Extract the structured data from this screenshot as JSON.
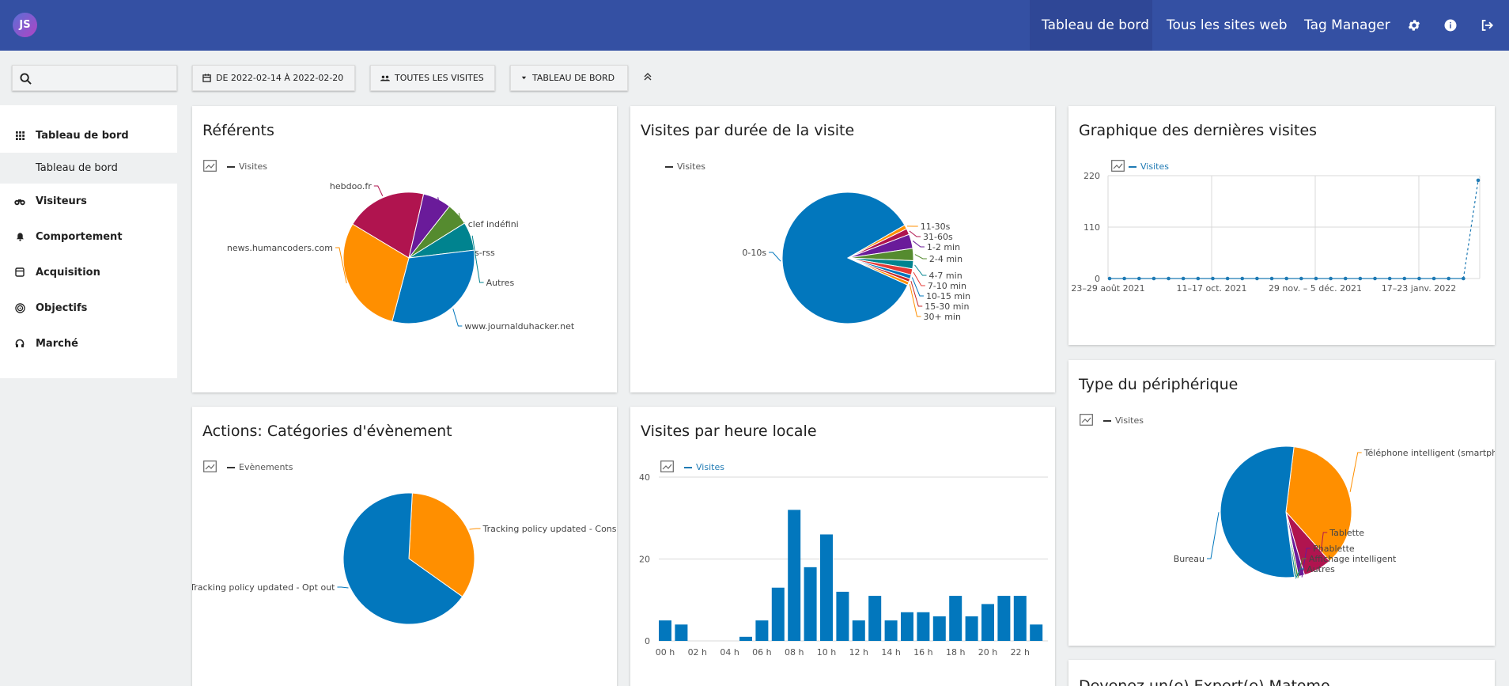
{
  "user": {
    "initials": "JS"
  },
  "topnav": {
    "items": [
      "Tableau de bord",
      "Tous les sites web",
      "Tag Manager"
    ],
    "icons": [
      "gear-icon",
      "info-icon",
      "logout-icon"
    ]
  },
  "toolbar": {
    "search_placeholder": "",
    "period_label": "DE 2022-02-14 À 2022-02-20",
    "segment_label": "TOUTES LES VISITES",
    "dashboard_label": "TABLEAU DE BORD"
  },
  "sidebar": {
    "items": [
      {
        "label": "Tableau de bord",
        "icon": "grid-icon"
      },
      {
        "label": "Visiteurs",
        "icon": "binoculars-icon"
      },
      {
        "label": "Comportement",
        "icon": "bell-icon"
      },
      {
        "label": "Acquisition",
        "icon": "acquisition-icon"
      },
      {
        "label": "Objectifs",
        "icon": "target-icon"
      },
      {
        "label": "Marché",
        "icon": "headset-icon"
      }
    ],
    "sub_item": "Tableau de bord"
  },
  "cards": {
    "referents": {
      "title": "Référents",
      "legend": "Visites"
    },
    "duree": {
      "title": "Visites par durée de la visite",
      "legend": "Visites"
    },
    "graphique": {
      "title": "Graphique des dernières visites",
      "legend": "Visites"
    },
    "actions": {
      "title": "Actions: Catégories d'évènement",
      "legend": "Evènements"
    },
    "heure": {
      "title": "Visites par heure locale",
      "legend": "Visites"
    },
    "peripherique": {
      "title": "Type du périphérique",
      "legend": "Visites"
    },
    "expert": {
      "title": "Devenez un(e) Expert(e) Matomo"
    }
  },
  "colors": {
    "topbar": "#3450a3",
    "blue": "#0277bd",
    "orange": "#ff8f00",
    "crimson": "#b0144f",
    "purple": "#6a1b9a",
    "green": "#558b2f",
    "teal": "#00838f",
    "red": "#e53935",
    "link": "#1f7ab4"
  },
  "chart_data": [
    {
      "type": "pie",
      "title": "Référents",
      "series": [
        {
          "name": "Visites",
          "values": [
            {
              "label": "hebdoo.fr",
              "value": 20,
              "color": "#b0144f"
            },
            {
              "label": "Mot clef indéfini",
              "value": 7,
              "color": "#6a1b9a"
            },
            {
              "label": "ts-rss",
              "value": 5.5,
              "color": "#558b2f"
            },
            {
              "label": "Autres",
              "value": 7,
              "color": "#00838f"
            },
            {
              "label": "www.journalduhacker.net",
              "value": 31,
              "color": "#0277bd"
            },
            {
              "label": "news.humancoders.com",
              "value": 29.5,
              "color": "#ff8f00"
            }
          ]
        }
      ]
    },
    {
      "type": "pie",
      "title": "Visites par durée de la visite",
      "series": [
        {
          "name": "Visites",
          "values": [
            {
              "label": "11-30s",
              "value": 1,
              "color": "#ff8f00"
            },
            {
              "label": "31-60s",
              "value": 1.5,
              "color": "#b0144f"
            },
            {
              "label": "1-2 min",
              "value": 3.5,
              "color": "#6a1b9a"
            },
            {
              "label": "2-4 min",
              "value": 3,
              "color": "#558b2f"
            },
            {
              "label": "4-7 min",
              "value": 2,
              "color": "#00838f"
            },
            {
              "label": "7-10 min",
              "value": 1.5,
              "color": "#e53935"
            },
            {
              "label": "10-15 min",
              "value": 1,
              "color": "#0277bd"
            },
            {
              "label": "15-30 min",
              "value": 0.8,
              "color": "#c62828"
            },
            {
              "label": "30+ min",
              "value": 0.8,
              "color": "#ff8f00"
            },
            {
              "label": "0-10s",
              "value": 84.9,
              "color": "#0277bd"
            }
          ]
        }
      ]
    },
    {
      "type": "line",
      "title": "Graphique des dernières visites",
      "x_ticks": [
        "23–29 août 2021",
        "11–17 oct. 2021",
        "29 nov. – 5 déc. 2021",
        "17–23 janv. 2022"
      ],
      "y_ticks": [
        0,
        110,
        220
      ],
      "ylim": [
        0,
        220
      ],
      "series": [
        {
          "name": "Visites",
          "values": [
            0,
            0,
            0,
            0,
            0,
            0,
            0,
            0,
            0,
            0,
            0,
            0,
            0,
            0,
            0,
            0,
            0,
            0,
            0,
            0,
            0,
            0,
            0,
            0,
            0,
            210
          ]
        }
      ]
    },
    {
      "type": "pie",
      "title": "Actions: Catégories d'évènement",
      "series": [
        {
          "name": "Evènements",
          "values": [
            {
              "label": "Tracking policy updated - Consent",
              "value": 34,
              "color": "#ff8f00"
            },
            {
              "label": "Tracking policy updated - Opt out",
              "value": 66,
              "color": "#0277bd"
            }
          ]
        }
      ]
    },
    {
      "type": "bar",
      "title": "Visites par heure locale",
      "categories": [
        "00 h",
        "01 h",
        "02 h",
        "03 h",
        "04 h",
        "05 h",
        "06 h",
        "07 h",
        "08 h",
        "09 h",
        "10 h",
        "11 h",
        "12 h",
        "13 h",
        "14 h",
        "15 h",
        "16 h",
        "17 h",
        "18 h",
        "19 h",
        "20 h",
        "21 h",
        "22 h",
        "23 h"
      ],
      "x_tick_labels": [
        "00 h",
        "02 h",
        "04 h",
        "06 h",
        "08 h",
        "10 h",
        "12 h",
        "14 h",
        "16 h",
        "18 h",
        "20 h",
        "22 h"
      ],
      "y_ticks": [
        0,
        20,
        40
      ],
      "ylim": [
        0,
        40
      ],
      "series": [
        {
          "name": "Visites",
          "values": [
            5,
            4,
            0,
            0,
            0,
            1,
            5,
            13,
            32,
            18,
            26,
            12,
            5,
            11,
            5,
            7,
            7,
            6,
            11,
            6,
            9,
            11,
            11,
            4
          ]
        }
      ]
    },
    {
      "type": "pie",
      "title": "Type du périphérique",
      "series": [
        {
          "name": "Visites",
          "values": [
            {
              "label": "Téléphone intelligent (smartphone)",
              "value": 36.5,
              "color": "#ff8f00"
            },
            {
              "label": "Tablette",
              "value": 7,
              "color": "#b0144f"
            },
            {
              "label": "Phablette",
              "value": 1.5,
              "color": "#6a1b9a"
            },
            {
              "label": "Affichage intelligent",
              "value": 0.5,
              "color": "#558b2f"
            },
            {
              "label": "Autres",
              "value": 0.5,
              "color": "#00838f"
            },
            {
              "label": "Bureau",
              "value": 54,
              "color": "#0277bd"
            }
          ]
        }
      ]
    }
  ]
}
